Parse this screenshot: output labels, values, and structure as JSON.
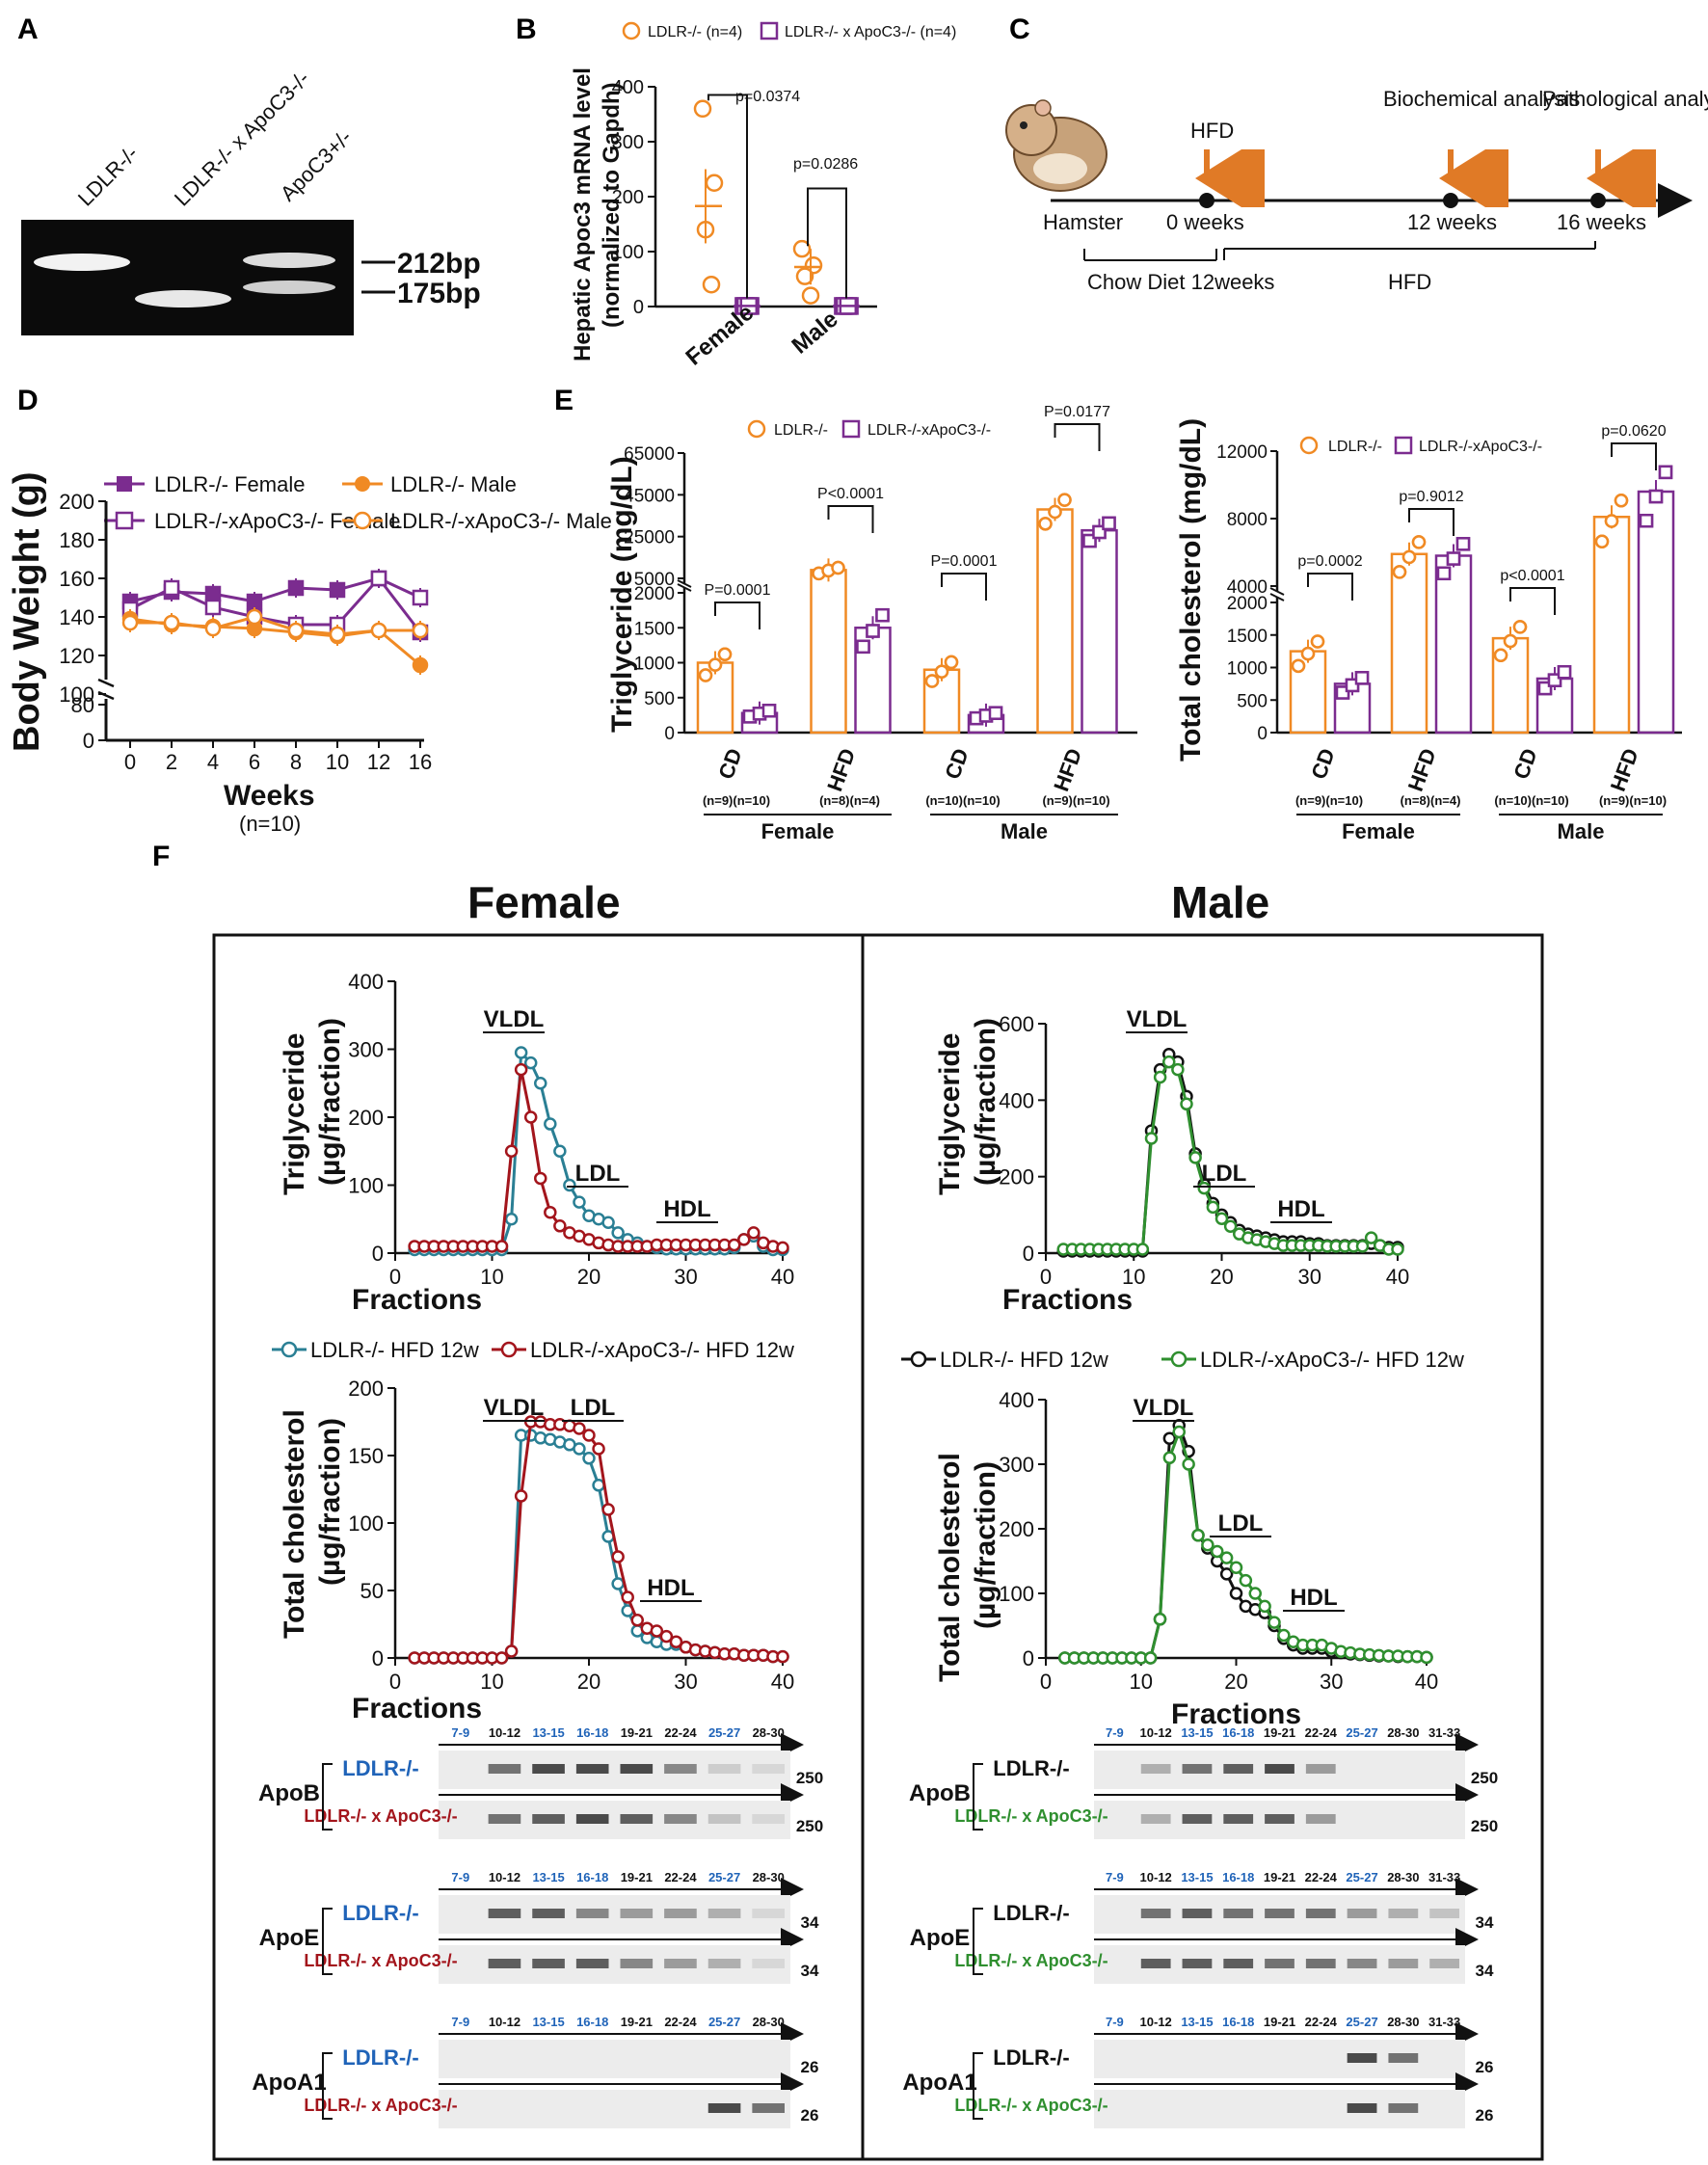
{
  "panels": {
    "A": {
      "label": "A",
      "lanes": [
        "LDLR-/-",
        "LDLR-/- x ApoC3-/-",
        "ApoC3+/-"
      ],
      "bands": [
        "212bp",
        "175bp"
      ]
    },
    "B": {
      "label": "B",
      "legend": [
        "LDLR-/- (n=4)",
        "LDLR-/- x ApoC3-/- (n=4)"
      ],
      "ylabel1": "Hepatic Apoc3 mRNA level",
      "ylabel2": "(normalized to Gapdh)",
      "pvalues": [
        "p=0.0374",
        "p=0.0286"
      ],
      "groups": [
        "Female",
        "Male"
      ]
    },
    "C": {
      "label": "C",
      "events": [
        "HFD",
        "Biochemical analysis",
        "Pathological analysis"
      ],
      "timepoints": [
        "Hamster",
        "0 weeks",
        "12 weeks",
        "16 weeks"
      ],
      "phases": [
        "Chow Diet 12weeks",
        "HFD"
      ]
    },
    "D": {
      "label": "D",
      "legend": [
        "LDLR-/- Female",
        "LDLR-/- Male",
        "LDLR-/-xApoC3-/- Female",
        "LDLR-/-xApoC3-/- Male"
      ],
      "ylabel": "Body Weight (g)",
      "xlabel": "Weeks",
      "xnote": "(n=10)"
    },
    "E": {
      "label": "E",
      "legend": [
        "LDLR-/-",
        "LDLR-/-xApoC3-/-"
      ],
      "tg_ylabel": "Triglyceride (mg/dL)",
      "tc_ylabel": "Total cholesterol (mg/dL)",
      "groups": [
        "CD",
        "HFD",
        "CD",
        "HFD"
      ],
      "tg_n": [
        "(n=9)(n=10)",
        "(n=8)(n=4)",
        "(n=10)(n=10)",
        "(n=9)(n=10)"
      ],
      "tc_n": [
        "(n=9)(n=10)",
        "(n=8)(n=4)",
        "(n=10)(n=10)",
        "(n=9)(n=10)"
      ],
      "tg_p": [
        "P=0.0001",
        "P<0.0001",
        "P=0.0001",
        "P=0.0177"
      ],
      "tc_p": [
        "p=0.0002",
        "p=0.9012",
        "p<0.0001",
        "p=0.0620"
      ],
      "sexes": [
        "Female",
        "Male"
      ]
    },
    "F": {
      "label": "F",
      "female_title": "Female",
      "male_title": "Male",
      "xlabel": "Fractions",
      "tg_ylabel": "Triglyceride",
      "tc_ylabel": "Total cholesterol",
      "yunit": "(µg/fraction)",
      "female_legend": [
        "LDLR-/- HFD 12w",
        "LDLR-/-xApoC3-/- HFD 12w"
      ],
      "male_legend": [
        "LDLR-/- HFD 12w",
        "LDLR-/-xApoC3-/- HFD 12w"
      ],
      "peaks": [
        "VLDL",
        "LDL",
        "HDL"
      ],
      "blot_fractions": [
        "7-9",
        "10-12",
        "13-15",
        "16-18",
        "19-21",
        "22-24",
        "25-27",
        "28-30"
      ],
      "blot_fractions_male": [
        "7-9",
        "10-12",
        "13-15",
        "16-18",
        "19-21",
        "22-24",
        "25-27",
        "28-30",
        "31-33"
      ],
      "proteins": [
        "ApoB",
        "ApoE",
        "ApoA1"
      ],
      "sizes": [
        "250",
        "34",
        "26"
      ],
      "genotypes": [
        "LDLR-/-",
        "LDLR-/- x ApoC3-/-"
      ]
    }
  },
  "colors": {
    "orange": "#f08a24",
    "purple": "#7b2c8f",
    "teal": "#2a7f94",
    "red": "#a3151c",
    "black": "#111111",
    "green": "#2f8f2f",
    "blue": "#1f63b8"
  },
  "chart_data": [
    {
      "panel": "B",
      "type": "scatter",
      "title": "",
      "ylabel": "Hepatic Apoc3 mRNA level (normalized to Gapdh)",
      "ylim": [
        0,
        400
      ],
      "categories": [
        "Female",
        "Male"
      ],
      "series": [
        {
          "name": "LDLR-/- (n=4)",
          "points": [
            [
              0,
              360
            ],
            [
              0,
              225
            ],
            [
              0,
              140
            ],
            [
              0,
              40
            ],
            [
              1,
              105
            ],
            [
              1,
              75
            ],
            [
              1,
              55
            ],
            [
              1,
              20
            ]
          ],
          "means": [
            183,
            72
          ]
        },
        {
          "name": "LDLR-/- x ApoC3-/- (n=4)",
          "points": [
            [
              0,
              1
            ],
            [
              0,
              1
            ],
            [
              0,
              1
            ],
            [
              0,
              1
            ],
            [
              1,
              1
            ],
            [
              1,
              1
            ],
            [
              1,
              1
            ],
            [
              1,
              1
            ]
          ],
          "means": [
            1,
            1
          ]
        }
      ]
    },
    {
      "panel": "D",
      "type": "line",
      "xlabel": "Weeks",
      "ylabel": "Body Weight (g)",
      "ylim": [
        0,
        200
      ],
      "x": [
        0,
        2,
        4,
        6,
        8,
        10,
        12,
        16
      ],
      "series": [
        {
          "name": "LDLR-/- Female",
          "values": [
            148,
            153,
            152,
            148,
            155,
            154,
            160,
            132
          ]
        },
        {
          "name": "LDLR-/-xApoC3-/- Female",
          "values": [
            144,
            155,
            145,
            140,
            136,
            136,
            160,
            150
          ]
        },
        {
          "name": "LDLR-/- Male",
          "values": [
            139,
            136,
            135,
            134,
            132,
            130,
            133,
            115
          ]
        },
        {
          "name": "LDLR-/-xApoC3-/- Male",
          "values": [
            137,
            137,
            134,
            140,
            133,
            131,
            133,
            133
          ]
        }
      ]
    },
    {
      "panel": "E-TG",
      "type": "bar",
      "ylabel": "Triglyceride (mg/dL)",
      "categories": [
        "Female CD",
        "Female HFD",
        "Male CD",
        "Male HFD"
      ],
      "series": [
        {
          "name": "LDLR-/-",
          "values": [
            1000,
            9000,
            900,
            38000
          ]
        },
        {
          "name": "LDLR-/-xApoC3-/-",
          "values": [
            280,
            1500,
            250,
            28000
          ]
        }
      ]
    },
    {
      "panel": "E-TC",
      "type": "bar",
      "ylabel": "Total cholesterol (mg/dL)",
      "categories": [
        "Female CD",
        "Female HFD",
        "Male CD",
        "Male HFD"
      ],
      "series": [
        {
          "name": "LDLR-/-",
          "values": [
            1250,
            5900,
            1450,
            8100
          ]
        },
        {
          "name": "LDLR-/-xApoC3-/-",
          "values": [
            750,
            5800,
            830,
            9600
          ]
        }
      ]
    },
    {
      "panel": "F-female-TG",
      "type": "line",
      "xlabel": "Fractions",
      "ylabel": "Triglyceride (µg/fraction)",
      "ylim": [
        0,
        400
      ],
      "xlim": [
        0,
        40
      ],
      "x": [
        2,
        3,
        4,
        5,
        6,
        7,
        8,
        9,
        10,
        11,
        12,
        13,
        14,
        15,
        16,
        17,
        18,
        19,
        20,
        21,
        22,
        23,
        24,
        25,
        26,
        27,
        28,
        29,
        30,
        31,
        32,
        33,
        34,
        35,
        36,
        37,
        38,
        39,
        40
      ],
      "series": [
        {
          "name": "LDLR-/- HFD 12w",
          "values": [
            5,
            5,
            5,
            5,
            5,
            5,
            5,
            5,
            5,
            5,
            50,
            295,
            280,
            250,
            190,
            150,
            100,
            75,
            55,
            50,
            45,
            30,
            20,
            15,
            10,
            8,
            6,
            6,
            6,
            6,
            6,
            6,
            6,
            8,
            20,
            25,
            10,
            5,
            5
          ]
        },
        {
          "name": "LDLR-/-xApoC3-/- HFD 12w",
          "values": [
            10,
            10,
            10,
            10,
            10,
            10,
            10,
            10,
            10,
            10,
            150,
            270,
            200,
            110,
            60,
            40,
            30,
            25,
            20,
            15,
            12,
            10,
            10,
            10,
            10,
            12,
            12,
            12,
            12,
            12,
            12,
            12,
            12,
            12,
            20,
            30,
            15,
            10,
            8
          ]
        }
      ]
    },
    {
      "panel": "F-female-TC",
      "type": "line",
      "xlabel": "Fractions",
      "ylabel": "Total cholesterol (µg/fraction)",
      "ylim": [
        0,
        200
      ],
      "xlim": [
        0,
        40
      ],
      "x": [
        2,
        3,
        4,
        5,
        6,
        7,
        8,
        9,
        10,
        11,
        12,
        13,
        14,
        15,
        16,
        17,
        18,
        19,
        20,
        21,
        22,
        23,
        24,
        25,
        26,
        27,
        28,
        29,
        30,
        31,
        32,
        33,
        34,
        35,
        36,
        37,
        38,
        39,
        40
      ],
      "series": [
        {
          "name": "LDLR-/- HFD 12w",
          "values": [
            0,
            0,
            0,
            0,
            0,
            0,
            0,
            0,
            0,
            0,
            5,
            165,
            165,
            163,
            162,
            160,
            158,
            155,
            148,
            128,
            90,
            55,
            35,
            20,
            15,
            12,
            10,
            10,
            8,
            6,
            5,
            4,
            3,
            3,
            2,
            2,
            2,
            1,
            1
          ]
        },
        {
          "name": "LDLR-/-xApoC3-/- HFD 12w",
          "values": [
            0,
            0,
            0,
            0,
            0,
            0,
            0,
            0,
            0,
            0,
            5,
            120,
            175,
            175,
            173,
            173,
            172,
            170,
            165,
            155,
            110,
            75,
            45,
            28,
            22,
            20,
            16,
            12,
            8,
            6,
            5,
            4,
            3,
            3,
            2,
            2,
            2,
            1,
            1
          ]
        }
      ]
    },
    {
      "panel": "F-male-TG",
      "type": "line",
      "xlabel": "Fractions",
      "ylabel": "Triglyceride (µg/fraction)",
      "ylim": [
        0,
        600
      ],
      "xlim": [
        0,
        40
      ],
      "x": [
        2,
        3,
        4,
        5,
        6,
        7,
        8,
        9,
        10,
        11,
        12,
        13,
        14,
        15,
        16,
        17,
        18,
        19,
        20,
        21,
        22,
        23,
        24,
        25,
        26,
        27,
        28,
        29,
        30,
        31,
        32,
        33,
        34,
        35,
        36,
        37,
        38,
        39,
        40
      ],
      "series": [
        {
          "name": "LDLR-/- HFD 12w",
          "values": [
            5,
            5,
            5,
            5,
            5,
            5,
            5,
            5,
            5,
            5,
            320,
            480,
            520,
            500,
            410,
            260,
            180,
            130,
            100,
            80,
            60,
            50,
            45,
            40,
            35,
            30,
            30,
            30,
            25,
            25,
            20,
            20,
            20,
            20,
            20,
            25,
            20,
            15,
            15
          ]
        },
        {
          "name": "LDLR-/-xApoC3-/- HFD 12w",
          "values": [
            10,
            10,
            10,
            10,
            10,
            10,
            10,
            10,
            10,
            10,
            300,
            460,
            500,
            480,
            390,
            250,
            170,
            120,
            90,
            70,
            50,
            40,
            35,
            30,
            25,
            20,
            20,
            20,
            20,
            20,
            18,
            18,
            18,
            18,
            18,
            40,
            20,
            10,
            10
          ]
        }
      ]
    },
    {
      "panel": "F-male-TC",
      "type": "line",
      "xlabel": "Fractions",
      "ylabel": "Total cholesterol (µg/fraction)",
      "ylim": [
        0,
        400
      ],
      "xlim": [
        0,
        40
      ],
      "x": [
        2,
        3,
        4,
        5,
        6,
        7,
        8,
        9,
        10,
        11,
        12,
        13,
        14,
        15,
        16,
        17,
        18,
        19,
        20,
        21,
        22,
        23,
        24,
        25,
        26,
        27,
        28,
        29,
        30,
        31,
        32,
        33,
        34,
        35,
        36,
        37,
        38,
        39,
        40
      ],
      "series": [
        {
          "name": "LDLR-/- HFD 12w",
          "values": [
            0,
            0,
            0,
            0,
            0,
            0,
            0,
            0,
            0,
            0,
            60,
            340,
            360,
            320,
            190,
            170,
            150,
            130,
            100,
            80,
            75,
            70,
            50,
            30,
            20,
            15,
            15,
            15,
            10,
            8,
            6,
            5,
            4,
            3,
            3,
            2,
            2,
            2,
            1
          ]
        },
        {
          "name": "LDLR-/-xApoC3-/- HFD 12w",
          "values": [
            0,
            0,
            0,
            0,
            0,
            0,
            0,
            0,
            0,
            0,
            60,
            310,
            350,
            300,
            190,
            175,
            165,
            155,
            140,
            120,
            100,
            80,
            55,
            35,
            25,
            20,
            20,
            20,
            15,
            10,
            8,
            6,
            5,
            4,
            3,
            3,
            2,
            2,
            1
          ]
        }
      ]
    }
  ]
}
